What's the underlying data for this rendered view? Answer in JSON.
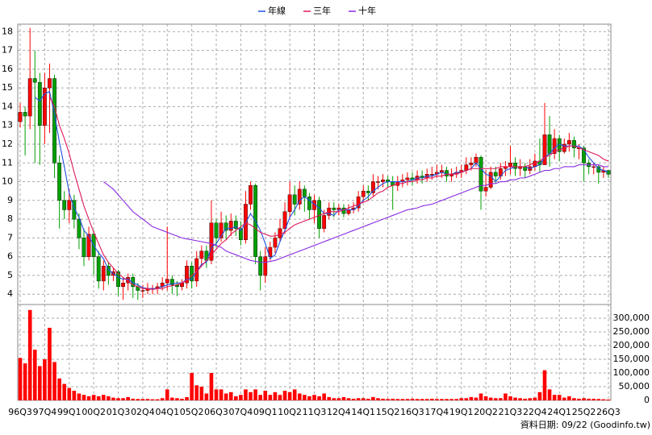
{
  "chart_data": [
    {
      "type": "candlestick",
      "legend": "top",
      "grid": true,
      "up_color": "#ff0000",
      "down_color": "#00a000",
      "ylim": [
        3.45,
        18.4
      ],
      "yticks": [
        4,
        5,
        6,
        7,
        8,
        9,
        10,
        11,
        12,
        13,
        14,
        15,
        16,
        17,
        18
      ],
      "open": [
        13.2,
        13.7,
        13.5,
        15.5,
        15.3,
        13.0,
        15.0,
        15.5,
        11.0,
        9.0,
        8.5,
        9.0,
        8.0,
        7.0,
        6.0,
        7.2,
        6.0,
        4.7,
        5.5,
        5.0,
        5.2,
        4.4,
        4.6,
        4.9,
        4.4,
        4.2,
        4.2,
        4.3,
        4.3,
        4.4,
        4.6,
        4.8,
        4.5,
        4.4,
        4.6,
        5.5,
        4.7,
        5.9,
        6.3,
        5.8,
        7.8,
        7.0,
        7.8,
        7.4,
        7.9,
        7.5,
        6.9,
        8.8,
        9.8,
        6.0,
        5.0,
        6.0,
        6.5,
        7.0,
        7.5,
        8.4,
        9.3,
        8.8,
        9.6,
        9.2,
        8.5,
        9.0,
        7.5,
        8.2,
        8.6,
        8.5,
        8.6,
        8.3,
        8.5,
        8.6,
        9.2,
        9.5,
        9.4,
        10.0,
        10.0,
        10.1,
        10.0,
        9.8,
        10.0,
        10.1,
        10.2,
        10.1,
        10.3,
        10.2,
        10.4,
        10.4,
        10.5,
        10.6,
        10.3,
        10.4,
        10.5,
        10.6,
        10.9,
        11.0,
        11.3,
        9.5,
        9.7,
        10.5,
        10.3,
        10.7,
        10.8,
        11.0,
        10.7,
        10.8,
        10.6,
        10.8,
        11.1,
        10.9,
        12.5,
        11.5,
        12.3,
        11.6,
        12.0,
        12.2,
        11.8,
        11.8,
        11.0,
        10.8,
        10.8,
        10.5,
        10.6
      ],
      "high": [
        14.2,
        14.0,
        18.2,
        17.0,
        15.8,
        15.8,
        16.3,
        15.7,
        11.4,
        9.5,
        9.6,
        9.3,
        8.3,
        7.5,
        7.6,
        7.4,
        6.3,
        5.8,
        5.7,
        5.4,
        5.3,
        4.9,
        5.1,
        5.1,
        4.6,
        4.5,
        4.6,
        4.5,
        4.6,
        4.9,
        7.6,
        5.0,
        4.7,
        4.8,
        5.8,
        5.7,
        6.3,
        6.6,
        6.6,
        9.0,
        8.0,
        8.4,
        8.2,
        8.3,
        8.2,
        7.9,
        9.5,
        10.0,
        9.9,
        6.3,
        6.5,
        6.8,
        7.3,
        8.0,
        8.9,
        10.0,
        9.8,
        10.0,
        9.8,
        9.4,
        9.3,
        9.2,
        8.5,
        8.9,
        8.9,
        8.8,
        8.8,
        8.8,
        8.9,
        9.5,
        9.8,
        9.8,
        10.4,
        10.3,
        10.4,
        10.3,
        10.3,
        10.3,
        10.4,
        10.5,
        10.5,
        10.6,
        10.6,
        10.7,
        10.8,
        10.9,
        10.9,
        10.8,
        10.7,
        10.8,
        10.9,
        11.3,
        11.3,
        11.5,
        11.4,
        10.6,
        10.8,
        10.8,
        11.0,
        11.1,
        11.9,
        11.3,
        11.2,
        11.0,
        11.2,
        11.5,
        12.3,
        14.2,
        13.5,
        12.8,
        12.5,
        12.3,
        12.6,
        12.4,
        12.0,
        11.9,
        11.2,
        11.0,
        10.9,
        10.8,
        10.6
      ],
      "low": [
        12.9,
        11.4,
        12.8,
        11.0,
        10.9,
        12.0,
        12.6,
        10.2,
        7.5,
        8.0,
        7.8,
        7.5,
        6.4,
        5.5,
        5.8,
        5.0,
        4.3,
        4.2,
        4.5,
        4.7,
        3.9,
        3.7,
        4.2,
        3.8,
        3.7,
        3.8,
        4.0,
        4.0,
        4.0,
        4.2,
        4.2,
        4.0,
        3.9,
        4.2,
        4.3,
        4.3,
        4.4,
        5.5,
        5.4,
        5.6,
        6.5,
        6.8,
        6.9,
        7.1,
        7.1,
        6.6,
        6.7,
        8.5,
        5.6,
        4.2,
        4.6,
        5.8,
        6.2,
        6.8,
        7.2,
        8.1,
        8.2,
        8.5,
        8.4,
        8.0,
        7.8,
        7.0,
        7.3,
        8.0,
        8.1,
        8.2,
        8.1,
        8.2,
        8.3,
        8.4,
        8.9,
        9.0,
        9.2,
        9.6,
        9.7,
        9.7,
        8.5,
        9.5,
        9.7,
        9.8,
        9.8,
        9.9,
        9.9,
        10.0,
        10.1,
        10.2,
        10.2,
        10.0,
        10.0,
        10.2,
        10.2,
        10.4,
        10.6,
        10.8,
        8.5,
        9.2,
        9.6,
        9.9,
        10.1,
        10.3,
        10.4,
        10.3,
        10.3,
        10.2,
        10.4,
        10.6,
        10.5,
        10.9,
        10.8,
        11.2,
        11.1,
        11.5,
        11.6,
        11.3,
        11.2,
        10.0,
        10.4,
        10.4,
        9.9,
        10.2,
        10.2
      ],
      "close": [
        13.7,
        13.5,
        15.5,
        15.3,
        13.0,
        15.0,
        15.5,
        11.0,
        9.0,
        8.5,
        9.0,
        8.0,
        7.0,
        6.0,
        7.2,
        6.0,
        4.7,
        5.5,
        5.0,
        5.2,
        4.4,
        4.6,
        4.9,
        4.4,
        4.2,
        4.2,
        4.3,
        4.3,
        4.4,
        4.6,
        4.8,
        4.5,
        4.4,
        4.6,
        5.5,
        4.7,
        5.9,
        6.3,
        5.8,
        7.8,
        7.0,
        7.8,
        7.4,
        7.9,
        7.5,
        6.9,
        8.8,
        9.8,
        6.0,
        5.0,
        6.0,
        6.5,
        7.0,
        7.5,
        8.4,
        9.3,
        8.8,
        9.6,
        9.2,
        8.5,
        9.0,
        7.5,
        8.2,
        8.6,
        8.5,
        8.6,
        8.3,
        8.5,
        8.6,
        9.2,
        9.5,
        9.4,
        10.0,
        10.0,
        10.1,
        10.0,
        9.8,
        10.0,
        10.1,
        10.2,
        10.1,
        10.3,
        10.2,
        10.4,
        10.4,
        10.5,
        10.6,
        10.3,
        10.4,
        10.5,
        10.6,
        10.9,
        11.0,
        11.3,
        9.5,
        9.7,
        10.5,
        10.3,
        10.7,
        10.8,
        11.0,
        10.7,
        10.8,
        10.6,
        10.8,
        11.1,
        10.9,
        12.5,
        11.5,
        12.3,
        11.6,
        12.0,
        12.2,
        11.8,
        11.8,
        11.0,
        10.8,
        10.8,
        10.5,
        10.6,
        10.4
      ],
      "series": [
        {
          "name": "年線",
          "color": "#2050e0",
          "values": [
            null,
            null,
            null,
            14.5,
            14.3,
            14.7,
            14.8,
            13.6,
            12.1,
            10.8,
            9.4,
            8.6,
            8.1,
            7.4,
            7.1,
            6.6,
            6.2,
            5.9,
            5.3,
            5.1,
            4.9,
            4.8,
            4.8,
            4.6,
            4.5,
            4.35,
            4.3,
            4.3,
            4.3,
            4.4,
            4.5,
            4.55,
            4.6,
            4.6,
            4.8,
            4.8,
            5.2,
            5.6,
            5.7,
            6.5,
            6.7,
            7.1,
            7.5,
            7.5,
            7.6,
            7.4,
            7.8,
            8.3,
            7.9,
            7.4,
            6.7,
            5.9,
            6.1,
            6.8,
            7.4,
            8.1,
            8.5,
            9.0,
            9.2,
            9.0,
            8.8,
            8.6,
            8.3,
            8.3,
            8.2,
            8.5,
            8.5,
            8.5,
            8.5,
            8.7,
            9.0,
            9.2,
            9.5,
            9.7,
            9.9,
            10.0,
            10.0,
            10.0,
            10.0,
            10.0,
            10.1,
            10.2,
            10.2,
            10.3,
            10.3,
            10.4,
            10.5,
            10.4,
            10.4,
            10.5,
            10.5,
            10.6,
            10.7,
            11.0,
            10.7,
            10.4,
            10.3,
            10.0,
            10.3,
            10.6,
            10.7,
            10.8,
            10.8,
            10.8,
            10.7,
            10.8,
            10.9,
            11.3,
            11.5,
            11.8,
            12.0,
            11.9,
            11.9,
            11.9,
            11.9,
            11.7,
            11.3,
            11.0,
            10.7,
            10.6,
            10.5
          ]
        },
        {
          "name": "三年",
          "color": "#e0185a",
          "values": [
            null,
            null,
            null,
            null,
            null,
            null,
            14.5,
            14.0,
            13.0,
            12.3,
            11.5,
            10.5,
            9.6,
            8.7,
            8.0,
            7.3,
            6.7,
            6.1,
            5.7,
            5.4,
            5.1,
            4.9,
            4.7,
            4.5,
            4.4,
            4.3,
            4.3,
            4.25,
            4.3,
            4.3,
            4.4,
            4.45,
            4.5,
            4.6,
            4.75,
            5.0,
            5.2,
            5.5,
            5.8,
            6.1,
            6.4,
            6.7,
            6.9,
            7.2,
            7.4,
            7.6,
            7.8,
            7.7,
            7.5,
            7.3,
            7.2,
            7.1,
            7.1,
            7.2,
            7.3,
            7.5,
            7.7,
            7.8,
            7.9,
            8.0,
            8.1,
            8.2,
            8.3,
            8.4,
            8.4,
            8.4,
            8.5,
            8.6,
            8.7,
            8.8,
            8.9,
            9.0,
            9.2,
            9.4,
            9.5,
            9.7,
            9.8,
            9.9,
            9.9,
            10.0,
            10.0,
            10.1,
            10.1,
            10.2,
            10.2,
            10.3,
            10.3,
            10.4,
            10.4,
            10.4,
            10.5,
            10.6,
            10.7,
            10.7,
            10.7,
            10.7,
            10.7,
            10.7,
            10.8,
            10.8,
            10.8,
            10.8,
            10.8,
            10.8,
            10.9,
            11.0,
            11.1,
            11.3,
            11.4,
            11.6,
            11.7,
            11.8,
            11.9,
            11.9,
            11.8,
            11.7,
            11.6,
            11.5,
            11.4,
            11.2,
            11.1
          ]
        },
        {
          "name": "十年",
          "color": "#8a2be2",
          "values": [
            null,
            null,
            null,
            null,
            null,
            null,
            null,
            null,
            null,
            null,
            null,
            null,
            null,
            null,
            null,
            null,
            null,
            10.0,
            9.8,
            9.6,
            9.3,
            9.0,
            8.7,
            8.4,
            8.2,
            8.0,
            7.8,
            7.6,
            7.5,
            7.4,
            7.3,
            7.2,
            7.1,
            7.0,
            6.95,
            6.9,
            6.85,
            6.8,
            6.75,
            6.7,
            6.6,
            6.5,
            6.3,
            6.2,
            6.1,
            6.0,
            5.9,
            5.8,
            5.75,
            5.7,
            5.7,
            5.75,
            5.8,
            5.9,
            6.0,
            6.1,
            6.2,
            6.3,
            6.4,
            6.5,
            6.6,
            6.7,
            6.8,
            6.9,
            7.0,
            7.1,
            7.2,
            7.3,
            7.4,
            7.5,
            7.6,
            7.7,
            7.8,
            7.9,
            8.0,
            8.1,
            8.2,
            8.3,
            8.4,
            8.5,
            8.55,
            8.6,
            8.7,
            8.75,
            8.8,
            8.9,
            9.0,
            9.1,
            9.2,
            9.3,
            9.4,
            9.5,
            9.6,
            9.7,
            9.8,
            9.8,
            9.9,
            9.9,
            10.0,
            10.0,
            10.1,
            10.1,
            10.2,
            10.2,
            10.3,
            10.4,
            10.5,
            10.6,
            10.6,
            10.7,
            10.7,
            10.8,
            10.8,
            10.8,
            10.9,
            10.9,
            10.9,
            10.9,
            10.9,
            10.8,
            10.8
          ]
        }
      ]
    },
    {
      "type": "bar",
      "color": "#ff0000",
      "grid": true,
      "annotation": "資料日期: 09/22 (Goodinfo.tw)",
      "ylim": [
        0,
        350000
      ],
      "yticks": [
        0,
        {
          "value": 50000,
          "label": "50,000"
        },
        {
          "value": 100000,
          "label": "100,000"
        },
        {
          "value": 150000,
          "label": "150,000"
        },
        {
          "value": 200000,
          "label": "200,000"
        },
        {
          "value": 250000,
          "label": "250,000"
        },
        {
          "value": 300000,
          "label": "300,000"
        }
      ],
      "categories": [
        "96Q3",
        null,
        null,
        null,
        null,
        "97Q4",
        null,
        null,
        null,
        null,
        "99Q1",
        null,
        null,
        null,
        null,
        "00Q2",
        null,
        null,
        null,
        null,
        "01Q3",
        null,
        null,
        null,
        null,
        "02Q4",
        null,
        null,
        null,
        null,
        "04Q1",
        null,
        null,
        null,
        null,
        "05Q2",
        null,
        null,
        null,
        null,
        "06Q3",
        null,
        null,
        null,
        null,
        "07Q4",
        null,
        null,
        null,
        null,
        "09Q1",
        null,
        null,
        null,
        null,
        "10Q2",
        null,
        null,
        null,
        null,
        "11Q3",
        null,
        null,
        null,
        null,
        "12Q4",
        null,
        null,
        null,
        null,
        "14Q1",
        null,
        null,
        null,
        null,
        "15Q2",
        null,
        null,
        null,
        null,
        "16Q3",
        null,
        null,
        null,
        null,
        "17Q4",
        null,
        null,
        null,
        null,
        "19Q1",
        null,
        null,
        null,
        null,
        "20Q2",
        null,
        null,
        null,
        null,
        "21Q3",
        null,
        null,
        null,
        null,
        "22Q4",
        null,
        null,
        null,
        null,
        "24Q1",
        null,
        null,
        null,
        null,
        "25Q2",
        null,
        null,
        null,
        null,
        "26Q3"
      ],
      "values": [
        155000,
        135000,
        330000,
        185000,
        125000,
        150000,
        265000,
        140000,
        80000,
        60000,
        45000,
        35000,
        25000,
        20000,
        15000,
        20000,
        15000,
        20000,
        15000,
        10000,
        8000,
        8000,
        12000,
        6000,
        5000,
        5000,
        5000,
        4000,
        4000,
        8000,
        40000,
        10000,
        8000,
        6000,
        12000,
        100000,
        55000,
        50000,
        25000,
        100000,
        40000,
        40000,
        25000,
        30000,
        15000,
        20000,
        40000,
        30000,
        40000,
        20000,
        35000,
        20000,
        30000,
        20000,
        35000,
        30000,
        40000,
        25000,
        20000,
        15000,
        20000,
        15000,
        25000,
        12000,
        8000,
        8000,
        12000,
        8000,
        6000,
        8000,
        8000,
        6000,
        12000,
        8000,
        6000,
        5000,
        6000,
        5000,
        5000,
        5000,
        6000,
        5000,
        5000,
        5000,
        6000,
        5000,
        5000,
        5000,
        5000,
        5000,
        8000,
        8000,
        12000,
        10000,
        25000,
        15000,
        10000,
        8000,
        8000,
        25000,
        15000,
        10000,
        8000,
        6000,
        8000,
        10000,
        30000,
        110000,
        40000,
        20000,
        20000,
        10000,
        15000,
        8000,
        6000,
        8000,
        6000,
        6000,
        5000,
        4000,
        3000
      ]
    }
  ]
}
